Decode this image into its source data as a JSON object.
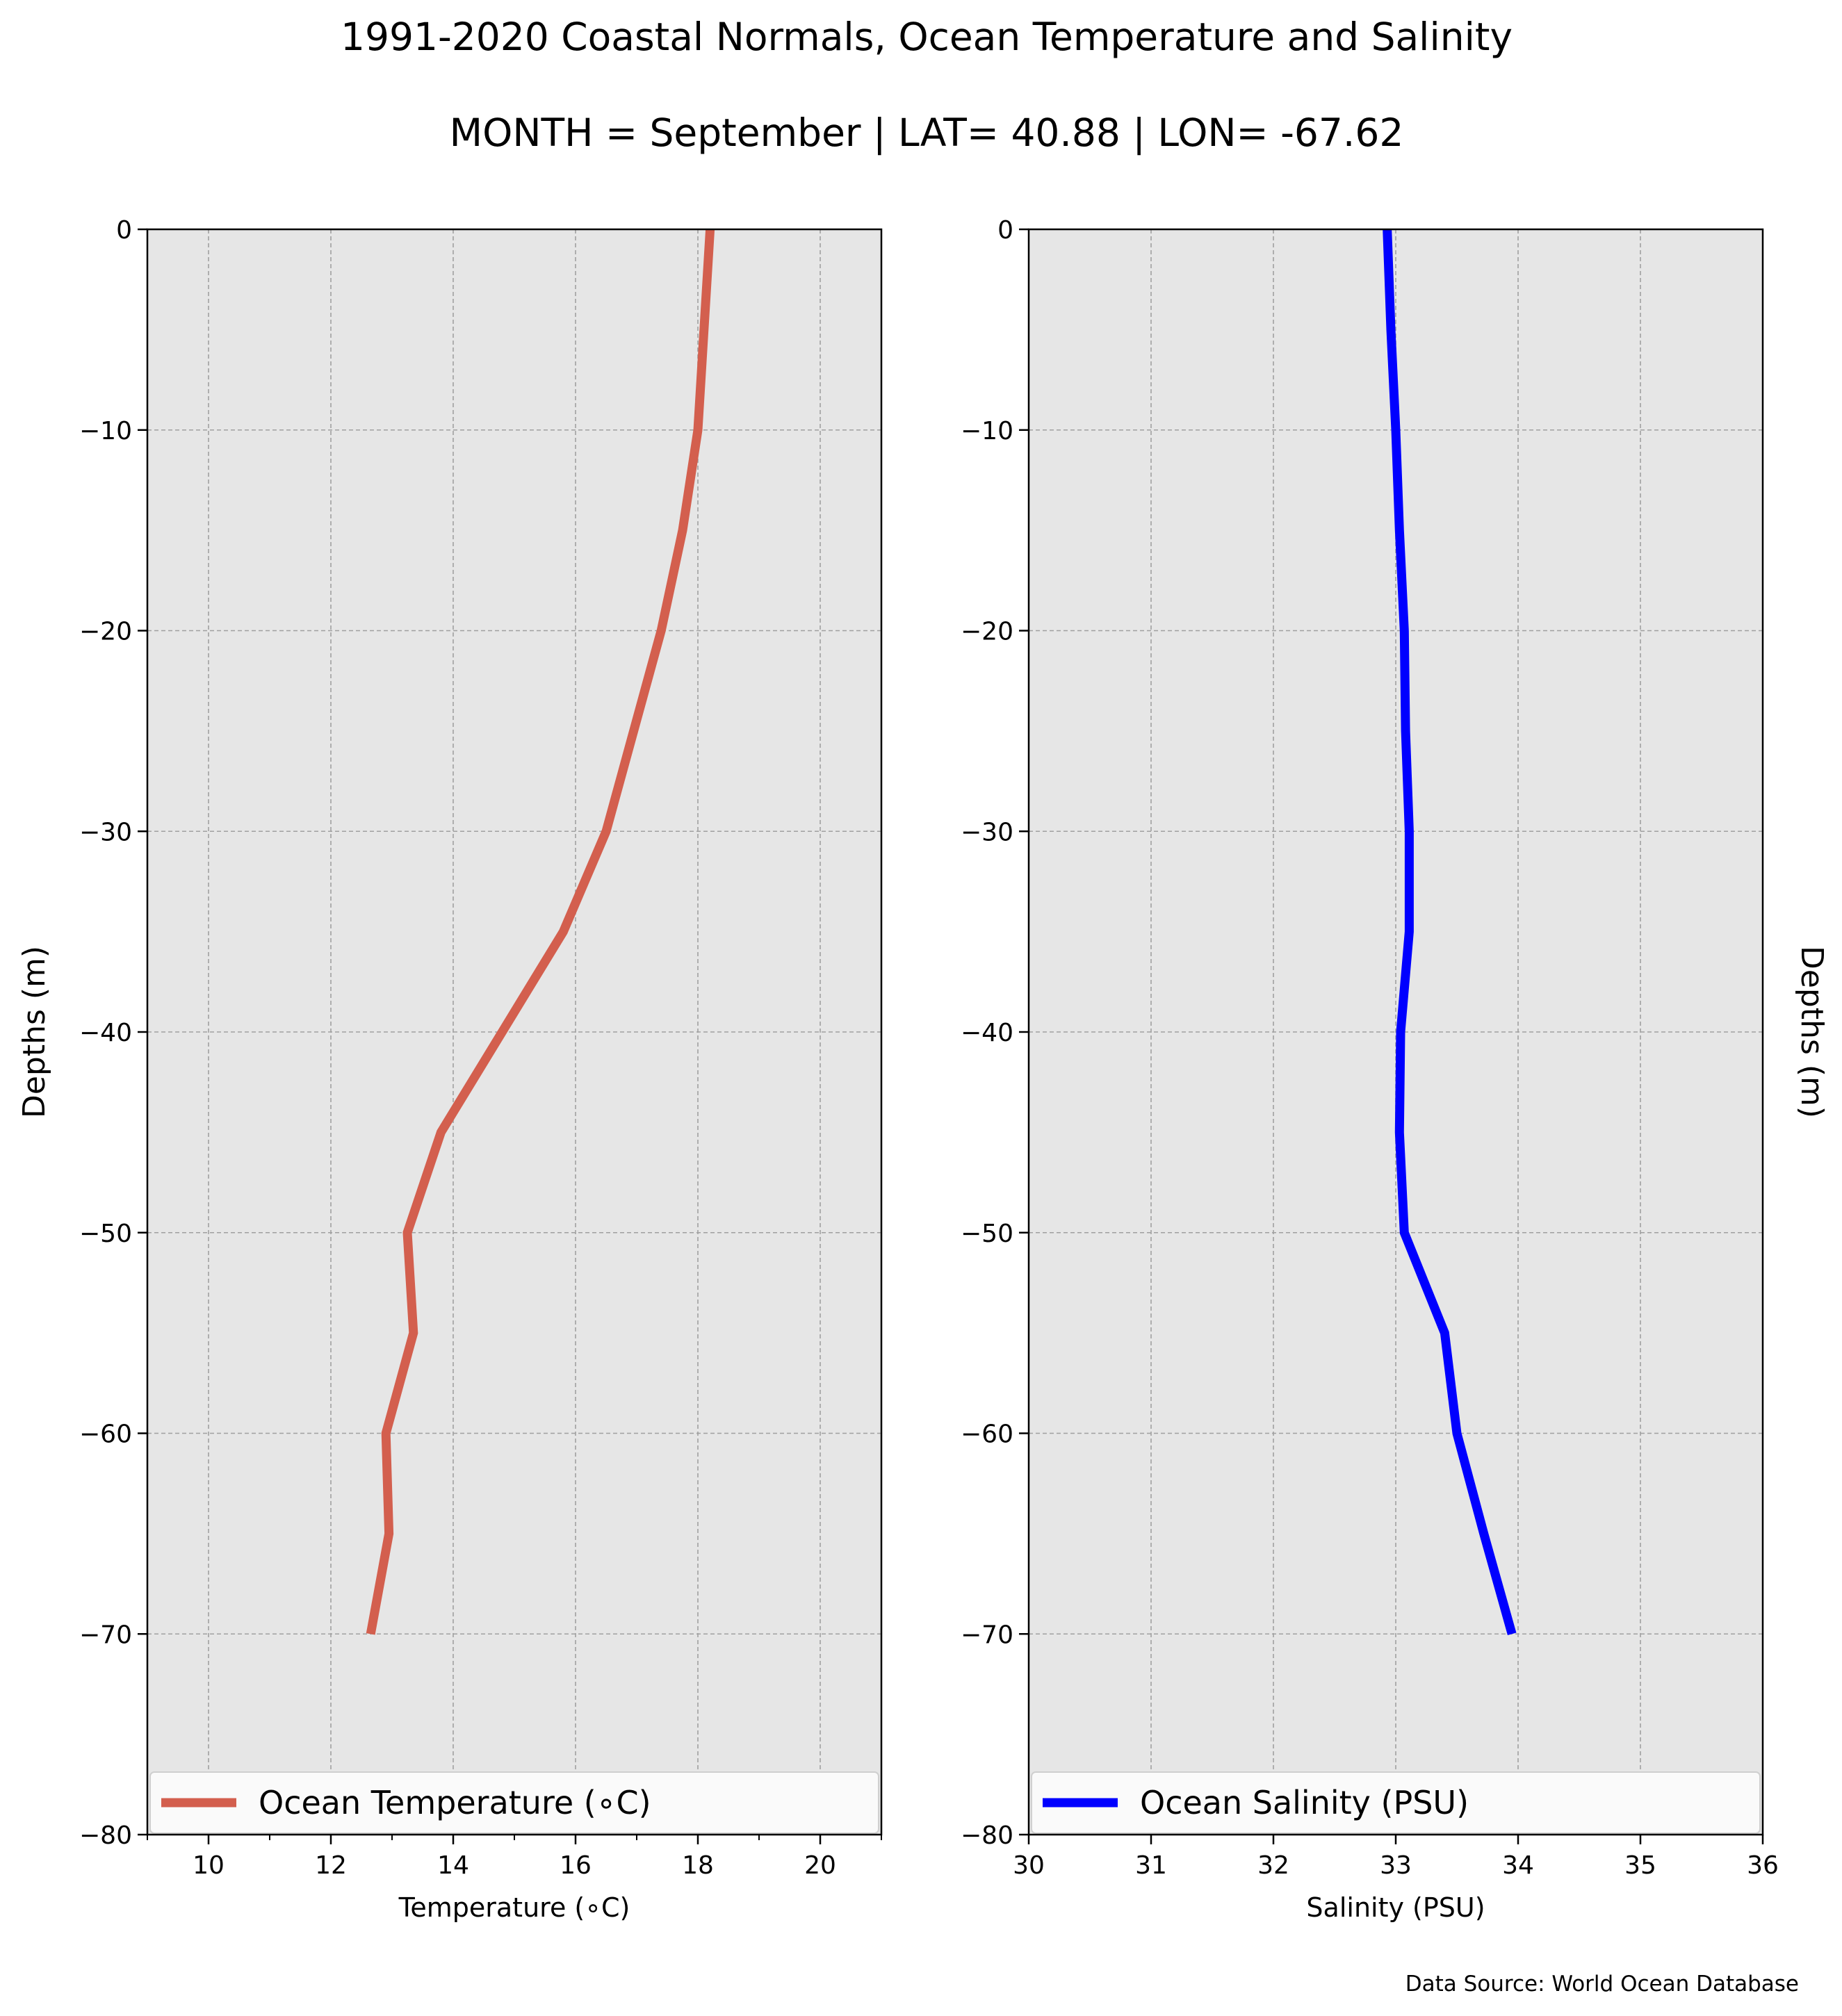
{
  "figure": {
    "title": "1991-2020 Coastal Normals, Ocean Temperature and Salinity",
    "subtitle": "MONTH = September | LAT= 40.88 | LON= -67.62",
    "source_note": "Data Source: World Ocean Database"
  },
  "colors": {
    "plot_background": "#e6e6e6",
    "grid": "#a0a0a0",
    "temperature_line": "#d35f4e",
    "salinity_line": "#0000ff"
  },
  "chart_data": [
    {
      "type": "line",
      "title": "",
      "xlabel": "Temperature (∘C)",
      "ylabel": "Depths (m)",
      "xlim": [
        9,
        21
      ],
      "ylim": [
        -80,
        0
      ],
      "xticks": [
        10,
        12,
        14,
        16,
        18,
        20
      ],
      "xminor": [
        9,
        11,
        13,
        15,
        17,
        19,
        21
      ],
      "yticks": [
        0,
        -10,
        -20,
        -30,
        -40,
        -50,
        -60,
        -70,
        -80
      ],
      "grid": true,
      "legend_position": "bottom",
      "series": [
        {
          "name": "Ocean Temperature (∘C)",
          "color": "#d35f4e",
          "x": [
            18.2,
            18.1,
            18.0,
            17.75,
            17.4,
            16.95,
            16.5,
            15.8,
            14.8,
            13.8,
            13.25,
            13.35,
            12.9,
            12.95,
            12.65
          ],
          "y": [
            0,
            -5,
            -10,
            -15,
            -20,
            -25,
            -30,
            -35,
            -40,
            -45,
            -50,
            -55,
            -60,
            -65,
            -70
          ]
        }
      ]
    },
    {
      "type": "line",
      "title": "",
      "xlabel": "Salinity (PSU)",
      "ylabel": "Depths (m)",
      "xlim": [
        30,
        36
      ],
      "ylim": [
        -80,
        0
      ],
      "xticks": [
        30,
        31,
        32,
        33,
        34,
        35,
        36
      ],
      "xminor": [],
      "yticks": [
        0,
        -10,
        -20,
        -30,
        -40,
        -50,
        -60,
        -70,
        -80
      ],
      "grid": true,
      "legend_position": "bottom",
      "series": [
        {
          "name": "Ocean Salinity (PSU)",
          "color": "#0000ff",
          "x": [
            32.93,
            32.96,
            33.0,
            33.03,
            33.07,
            33.08,
            33.11,
            33.11,
            33.04,
            33.03,
            33.07,
            33.4,
            33.5,
            33.72,
            33.95
          ],
          "y": [
            0,
            -5,
            -10,
            -15,
            -20,
            -25,
            -30,
            -35,
            -40,
            -45,
            -50,
            -55,
            -60,
            -65,
            -70
          ]
        }
      ]
    }
  ]
}
